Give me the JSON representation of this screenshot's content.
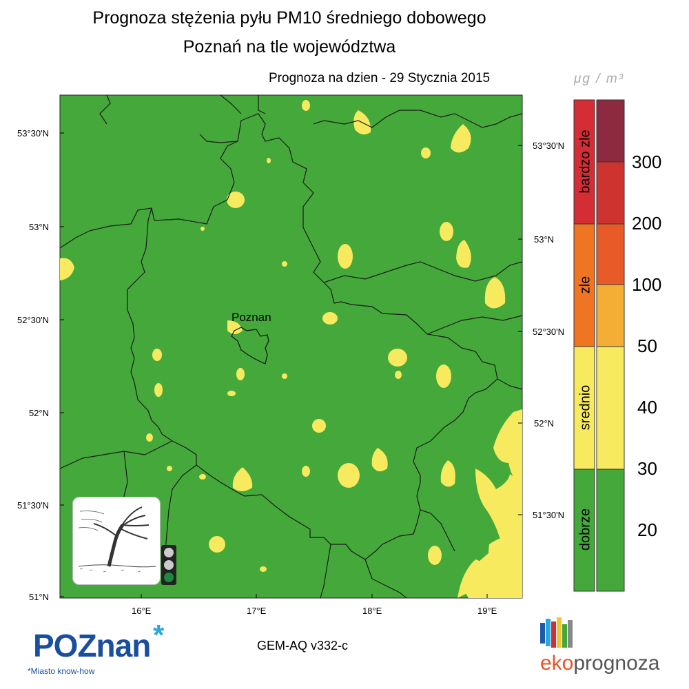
{
  "title": {
    "line1": "Prognoza stężenia pyłu PM10 średniego dobowego",
    "line2": "Poznań na tle województwa"
  },
  "forecast_date": "Prognoza na dzien -  29 Stycznia 2015",
  "city_label": "Poznan",
  "axes": {
    "lat_left": [
      "53°30'N",
      "53°N",
      "52°30'N",
      "52°N",
      "51°30'N",
      "51°N"
    ],
    "lat_right": [
      "53°30'N",
      "53°N",
      "52°30'N",
      "52°N",
      "51°30'N"
    ],
    "lon_bottom": [
      "16°E",
      "17°E",
      "18°E",
      "19°E"
    ]
  },
  "legend": {
    "unit": "μg / m³",
    "categories": [
      "bardzo zle",
      "zle",
      "srednio",
      "dobrze"
    ],
    "scale_values": [
      "300",
      "200",
      "100",
      "50",
      "40",
      "30",
      "20"
    ],
    "category_colors": {
      "bardzo_zle": "#d42d35",
      "zle": "#ef7522",
      "srednio": "#f7ea5f",
      "dobrze": "#44a83a"
    },
    "scale_colors": [
      "#8d2a40",
      "#cf3330",
      "#e85b29",
      "#f4ae35",
      "#f7ea5f",
      "#44a83a"
    ]
  },
  "map_colors": {
    "background": "#44a83a",
    "moderate_patch": "#f7ea5f"
  },
  "traffic_light": {
    "active": "green",
    "lamp_colors": [
      "#cccccc",
      "#cccccc",
      "#1b8a3c"
    ]
  },
  "footer": {
    "model": "GEM-AQ v332-c",
    "poznan_logo": "POZnan",
    "poznan_tagline": "*Miasto know-how",
    "eko_logo_part1": "eko",
    "eko_logo_part2": "prognoza"
  },
  "icons": {
    "weather_icon": "windy-tree-icon",
    "traffic_icon": "traffic-light-icon",
    "poznan_star": "asterisk-icon",
    "eko_bars": "color-bars-icon"
  }
}
